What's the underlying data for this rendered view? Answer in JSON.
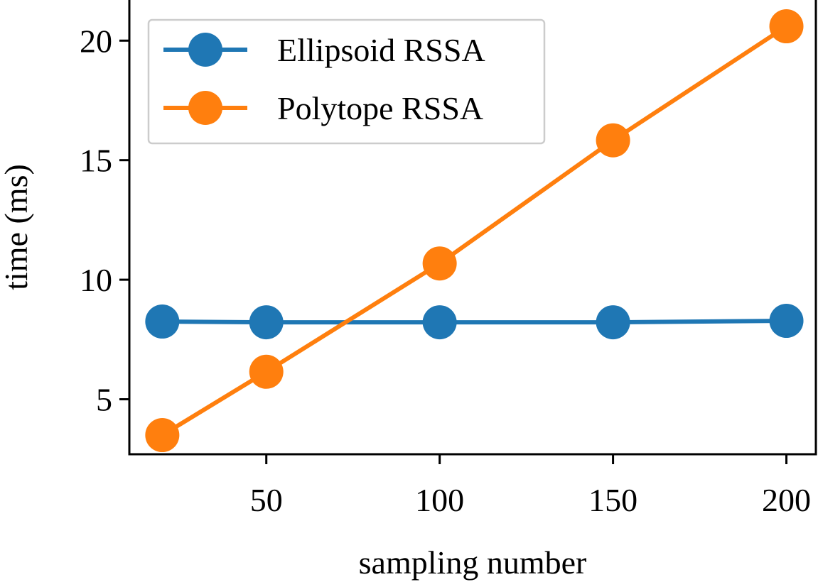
{
  "colors": {
    "ellipsoid": "#1f77b4",
    "polytope": "#ff7f0e"
  },
  "chart_data": {
    "type": "line",
    "xlabel": "sampling number",
    "ylabel": "time (ms)",
    "xlim": [
      10.5,
      208.5
    ],
    "ylim": [
      2.7,
      21.7
    ],
    "xticks": [
      50,
      100,
      150,
      200
    ],
    "yticks": [
      5,
      10,
      15,
      20
    ],
    "legend_position": "upper-left",
    "grid": false,
    "series": [
      {
        "name": "Ellipsoid RSSA",
        "color": "#1f77b4",
        "x": [
          20,
          50,
          100,
          150,
          200
        ],
        "y": [
          8.25,
          8.22,
          8.22,
          8.22,
          8.28
        ]
      },
      {
        "name": "Polytope RSSA",
        "color": "#ff7f0e",
        "x": [
          20,
          50,
          100,
          150,
          200
        ],
        "y": [
          3.5,
          6.15,
          10.68,
          15.83,
          20.6
        ]
      }
    ]
  }
}
